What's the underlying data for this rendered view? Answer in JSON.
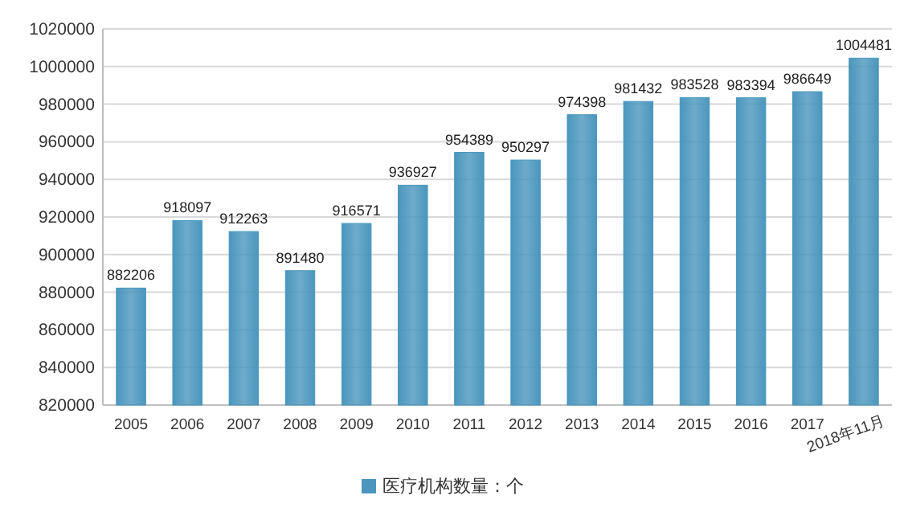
{
  "chart_data": {
    "type": "bar",
    "categories": [
      "2005",
      "2006",
      "2007",
      "2008",
      "2009",
      "2010",
      "2011",
      "2012",
      "2013",
      "2014",
      "2015",
      "2016",
      "2017",
      "2018年11月"
    ],
    "series": [
      {
        "name": "医疗机构数量：个",
        "color": "#4a96bd",
        "values": [
          882206,
          918097,
          912263,
          891480,
          916571,
          936927,
          954389,
          950297,
          974398,
          981432,
          983528,
          983394,
          986649,
          1004481
        ]
      }
    ],
    "ylim": [
      820000,
      1020000
    ],
    "yticks": [
      820000,
      840000,
      860000,
      880000,
      900000,
      920000,
      940000,
      960000,
      980000,
      1000000,
      1020000
    ],
    "grid": "y",
    "legend": "bottom",
    "data_labels": true
  }
}
